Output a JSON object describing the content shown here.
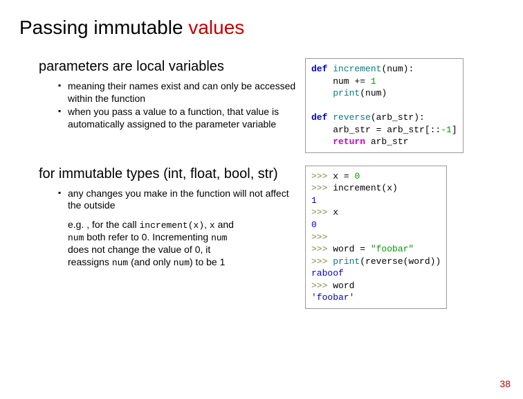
{
  "title_black": "Passing immutable ",
  "title_red": "values",
  "section1": {
    "heading": "parameters are local variables",
    "bullets": [
      "meaning their names exist and can only be accessed within the function",
      "when you pass a value to a function, that value is automatically assigned to the parameter variable"
    ]
  },
  "section2": {
    "heading": "for immutable types (int, float, bool, str)",
    "bullets": [
      "any changes you make in the function will not affect the outside"
    ],
    "example_pre": "e.g. , for the call ",
    "example_code1": "increment(x)",
    "example_mid1": ", ",
    "example_code2": "x",
    "example_mid2": " and ",
    "example_code3": "num",
    "example_mid3": " both refer to 0. Incrementing ",
    "example_code4": "num",
    "example_mid4": " does not change the value of 0, it reassigns ",
    "example_code5": "num",
    "example_mid5": " (and only ",
    "example_code6": "num",
    "example_mid6": ") to be 1"
  },
  "code1": {
    "l1_def": "def",
    "l1_fn": "increment",
    "l1_rest": "(num):",
    "l2": "    num += ",
    "l2_num": "1",
    "l3_pre": "    ",
    "l3_fn": "print",
    "l3_rest": "(num)",
    "blank": "",
    "l4_def": "def",
    "l4_fn": "reverse",
    "l4_rest": "(arb_str):",
    "l5_pre": "    arb_str = arb_str[::",
    "l5_num": "-1",
    "l5_post": "]",
    "l6_pre": "    ",
    "l6_ret": "return",
    "l6_rest": " arb_str"
  },
  "code2": {
    "p": ">>> ",
    "l1": "x = ",
    "l1n": "0",
    "l2": "increment(x)",
    "o1": "1",
    "l3": "x",
    "o2": "0",
    "blank": "",
    "l4_pre": "word = ",
    "l4_str": "\"foobar\"",
    "l5_pre": "",
    "l5_fn": "print",
    "l5_rest": "(reverse(word))",
    "o3": "raboof",
    "l6": "word",
    "o4": "'foobar'"
  },
  "pagenum": "38",
  "colors": {
    "title_red": "#c00000",
    "keyword": "#0000cc",
    "return_kw": "#cc00cc",
    "function": "#008080",
    "number": "#009900",
    "string": "#009900",
    "output": "#0000cc",
    "prompt": "#888844",
    "border": "#999999",
    "background": "#ffffff"
  }
}
